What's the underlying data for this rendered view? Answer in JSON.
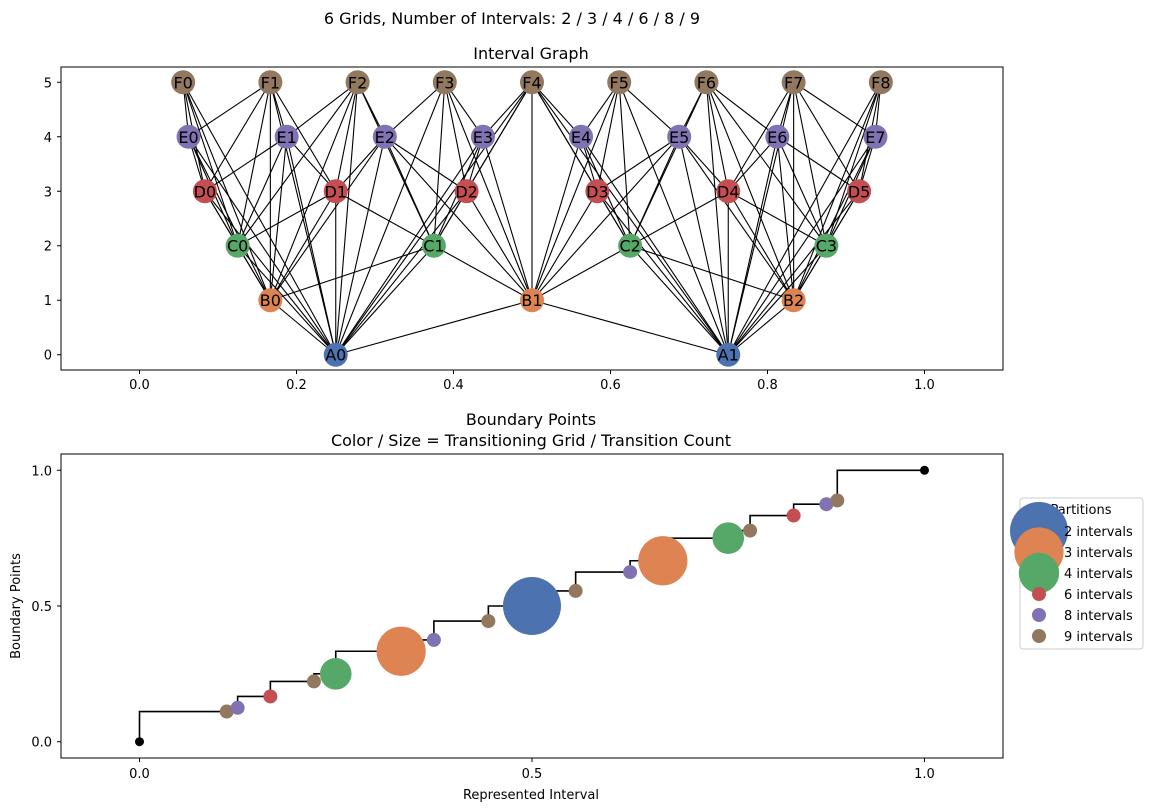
{
  "figure": {
    "suptitle": "6 Grids, Number of Intervals: 2 / 3 / 4 / 6 / 8 / 9"
  },
  "colors": {
    "A": "#4c72b0",
    "B": "#dd8452",
    "C": "#55a868",
    "D": "#c44e52",
    "E": "#8172b3",
    "F": "#937860",
    "edge": "#000000",
    "endpoint": "#000000"
  },
  "chart_data": [
    {
      "type": "scatter",
      "subtype": "network",
      "title": "Interval Graph",
      "xlabel": "",
      "ylabel": "",
      "xlim": [
        -0.1,
        1.1
      ],
      "ylim": [
        -0.28,
        5.28
      ],
      "xticks": [
        0.0,
        0.2,
        0.4,
        0.6,
        0.8,
        1.0
      ],
      "xtick_labels": [
        "0.0",
        "0.2",
        "0.4",
        "0.6",
        "0.8",
        "1.0"
      ],
      "yticks": [
        0,
        1,
        2,
        3,
        4,
        5
      ],
      "ytick_labels": [
        "0",
        "1",
        "2",
        "3",
        "4",
        "5"
      ],
      "grid": false,
      "levels": [
        {
          "prefix": "A",
          "y": 0,
          "count": 2
        },
        {
          "prefix": "B",
          "y": 1,
          "count": 3
        },
        {
          "prefix": "C",
          "y": 2,
          "count": 4
        },
        {
          "prefix": "D",
          "y": 3,
          "count": 6
        },
        {
          "prefix": "E",
          "y": 4,
          "count": 8
        },
        {
          "prefix": "F",
          "y": 5,
          "count": 9
        }
      ],
      "nodes": [
        {
          "label": "A0",
          "x": 0.25,
          "y": 0
        },
        {
          "label": "A1",
          "x": 0.75,
          "y": 0
        },
        {
          "label": "B0",
          "x": 0.1667,
          "y": 1
        },
        {
          "label": "B1",
          "x": 0.5,
          "y": 1
        },
        {
          "label": "B2",
          "x": 0.8333,
          "y": 1
        },
        {
          "label": "C0",
          "x": 0.125,
          "y": 2
        },
        {
          "label": "C1",
          "x": 0.375,
          "y": 2
        },
        {
          "label": "C2",
          "x": 0.625,
          "y": 2
        },
        {
          "label": "C3",
          "x": 0.875,
          "y": 2
        },
        {
          "label": "D0",
          "x": 0.0833,
          "y": 3
        },
        {
          "label": "D1",
          "x": 0.25,
          "y": 3
        },
        {
          "label": "D2",
          "x": 0.4167,
          "y": 3
        },
        {
          "label": "D3",
          "x": 0.5833,
          "y": 3
        },
        {
          "label": "D4",
          "x": 0.75,
          "y": 3
        },
        {
          "label": "D5",
          "x": 0.9167,
          "y": 3
        },
        {
          "label": "E0",
          "x": 0.0625,
          "y": 4
        },
        {
          "label": "E1",
          "x": 0.1875,
          "y": 4
        },
        {
          "label": "E2",
          "x": 0.3125,
          "y": 4
        },
        {
          "label": "E3",
          "x": 0.4375,
          "y": 4
        },
        {
          "label": "E4",
          "x": 0.5625,
          "y": 4
        },
        {
          "label": "E5",
          "x": 0.6875,
          "y": 4
        },
        {
          "label": "E6",
          "x": 0.8125,
          "y": 4
        },
        {
          "label": "E7",
          "x": 0.9375,
          "y": 4
        },
        {
          "label": "F0",
          "x": 0.0556,
          "y": 5
        },
        {
          "label": "F1",
          "x": 0.1667,
          "y": 5
        },
        {
          "label": "F2",
          "x": 0.2778,
          "y": 5
        },
        {
          "label": "F3",
          "x": 0.3889,
          "y": 5
        },
        {
          "label": "F4",
          "x": 0.5,
          "y": 5
        },
        {
          "label": "F5",
          "x": 0.6111,
          "y": 5
        },
        {
          "label": "F6",
          "x": 0.7222,
          "y": 5
        },
        {
          "label": "F7",
          "x": 0.8333,
          "y": 5
        },
        {
          "label": "F8",
          "x": 0.9444,
          "y": 5
        }
      ],
      "edges_rule": "interval overlap between nodes on different levels"
    },
    {
      "type": "scatter",
      "title": "Boundary Points",
      "subtitle": "Color / Size = Transitioning Grid / Transition Count",
      "xlabel": "Represented Interval",
      "ylabel": "Boundary Points",
      "xlim": [
        -0.1,
        1.1
      ],
      "ylim": [
        -0.06,
        1.06
      ],
      "xticks": [
        0.0,
        0.5,
        1.0
      ],
      "xtick_labels": [
        "0.0",
        "0.5",
        "1.0"
      ],
      "yticks": [
        0.0,
        0.5,
        1.0
      ],
      "ytick_labels": [
        "0.0",
        "0.5",
        "1.0"
      ],
      "grid": false,
      "legend": {
        "title": "Partitions",
        "placement": "right, outside",
        "entries": [
          {
            "label": "2 intervals",
            "color_key": "A",
            "size": 6
          },
          {
            "label": "3 intervals",
            "color_key": "B",
            "size": 5
          },
          {
            "label": "4 intervals",
            "color_key": "C",
            "size": 4
          },
          {
            "label": "6 intervals",
            "color_key": "D",
            "size": 1
          },
          {
            "label": "8 intervals",
            "color_key": "E",
            "size": 1
          },
          {
            "label": "9 intervals",
            "color_key": "F",
            "size": 1
          }
        ]
      },
      "step_line": {
        "x": [
          0.0,
          0.1111,
          0.125,
          0.1667,
          0.2222,
          0.25,
          0.3333,
          0.375,
          0.4444,
          0.5,
          0.5556,
          0.625,
          0.6667,
          0.75,
          0.7778,
          0.8333,
          0.875,
          0.8889,
          1.0
        ],
        "y": [
          0.0,
          0.1111,
          0.125,
          0.1667,
          0.2222,
          0.25,
          0.3333,
          0.375,
          0.4444,
          0.5,
          0.5556,
          0.625,
          0.6667,
          0.75,
          0.7778,
          0.8333,
          0.875,
          0.8889,
          1.0
        ]
      },
      "endpoints": [
        {
          "x": 0.0,
          "y": 0.0
        },
        {
          "x": 1.0,
          "y": 1.0
        }
      ],
      "points": [
        {
          "x": 0.1111,
          "y": 0.1111,
          "grid": "F",
          "count": 1
        },
        {
          "x": 0.125,
          "y": 0.125,
          "grid": "E",
          "count": 1
        },
        {
          "x": 0.1667,
          "y": 0.1667,
          "grid": "D",
          "count": 1
        },
        {
          "x": 0.2222,
          "y": 0.2222,
          "grid": "F",
          "count": 1
        },
        {
          "x": 0.25,
          "y": 0.25,
          "grid": "C",
          "count": 3
        },
        {
          "x": 0.3333,
          "y": 0.3333,
          "grid": "B",
          "count": 5
        },
        {
          "x": 0.375,
          "y": 0.375,
          "grid": "E",
          "count": 1
        },
        {
          "x": 0.4444,
          "y": 0.4444,
          "grid": "F",
          "count": 1
        },
        {
          "x": 0.5,
          "y": 0.5,
          "grid": "A",
          "count": 6
        },
        {
          "x": 0.5556,
          "y": 0.5556,
          "grid": "F",
          "count": 1
        },
        {
          "x": 0.625,
          "y": 0.625,
          "grid": "E",
          "count": 1
        },
        {
          "x": 0.6667,
          "y": 0.6667,
          "grid": "B",
          "count": 5
        },
        {
          "x": 0.75,
          "y": 0.75,
          "grid": "C",
          "count": 3
        },
        {
          "x": 0.7778,
          "y": 0.7778,
          "grid": "F",
          "count": 1
        },
        {
          "x": 0.8333,
          "y": 0.8333,
          "grid": "D",
          "count": 1
        },
        {
          "x": 0.875,
          "y": 0.875,
          "grid": "E",
          "count": 1
        },
        {
          "x": 0.8889,
          "y": 0.8889,
          "grid": "F",
          "count": 1
        }
      ]
    }
  ]
}
